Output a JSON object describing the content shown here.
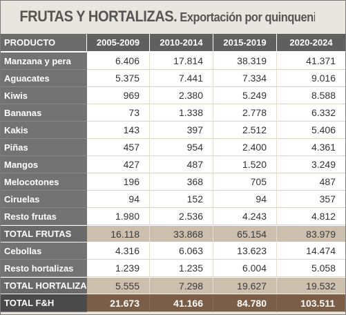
{
  "title": {
    "main": "FRUTAS Y HORTALIZAS.",
    "sub": "Exportación por quinquenios (t)"
  },
  "table": {
    "headers": [
      "PRODUCTO",
      "2005-2009",
      "2010-2014",
      "2015-2019",
      "2020-2024"
    ],
    "rows": [
      {
        "label": "Manzana y pera",
        "values": [
          "6.406",
          "17.814",
          "38.319",
          "41.371"
        ],
        "kind": "normal"
      },
      {
        "label": "Aguacates",
        "values": [
          "5.375",
          "7.441",
          "7.334",
          "9.016"
        ],
        "kind": "normal"
      },
      {
        "label": "Kiwis",
        "values": [
          "969",
          "2.380",
          "5.249",
          "8.588"
        ],
        "kind": "normal"
      },
      {
        "label": "Bananas",
        "values": [
          "73",
          "1.338",
          "2.778",
          "6.332"
        ],
        "kind": "normal"
      },
      {
        "label": "Kakis",
        "values": [
          "143",
          "397",
          "2.512",
          "5.406"
        ],
        "kind": "normal"
      },
      {
        "label": "Piñas",
        "values": [
          "457",
          "954",
          "2.400",
          "4.361"
        ],
        "kind": "normal"
      },
      {
        "label": "Mangos",
        "values": [
          "427",
          "487",
          "1.520",
          "3.249"
        ],
        "kind": "normal"
      },
      {
        "label": "Melocotones",
        "values": [
          "196",
          "368",
          "705",
          "487"
        ],
        "kind": "normal"
      },
      {
        "label": "Ciruelas",
        "values": [
          "94",
          "152",
          "94",
          "357"
        ],
        "kind": "normal"
      },
      {
        "label": "Resto frutas",
        "values": [
          "1.980",
          "2.536",
          "4.243",
          "4.812"
        ],
        "kind": "normal"
      },
      {
        "label": "TOTAL FRUTAS",
        "values": [
          "16.118",
          "33.868",
          "65.154",
          "83.979"
        ],
        "kind": "sub"
      },
      {
        "label": "Cebollas",
        "values": [
          "4.316",
          "6.063",
          "13.623",
          "14.474"
        ],
        "kind": "normal"
      },
      {
        "label": "Resto hortalizas",
        "values": [
          "1.239",
          "1.235",
          "6.004",
          "5.058"
        ],
        "kind": "normal"
      },
      {
        "label": "TOTAL HORTALIZAS",
        "values": [
          "5.555",
          "7.298",
          "19.627",
          "19.532"
        ],
        "kind": "sub"
      },
      {
        "label": "TOTAL F&H",
        "values": [
          "21.673",
          "41.166",
          "84.780",
          "103.511"
        ],
        "kind": "grand"
      }
    ]
  }
}
